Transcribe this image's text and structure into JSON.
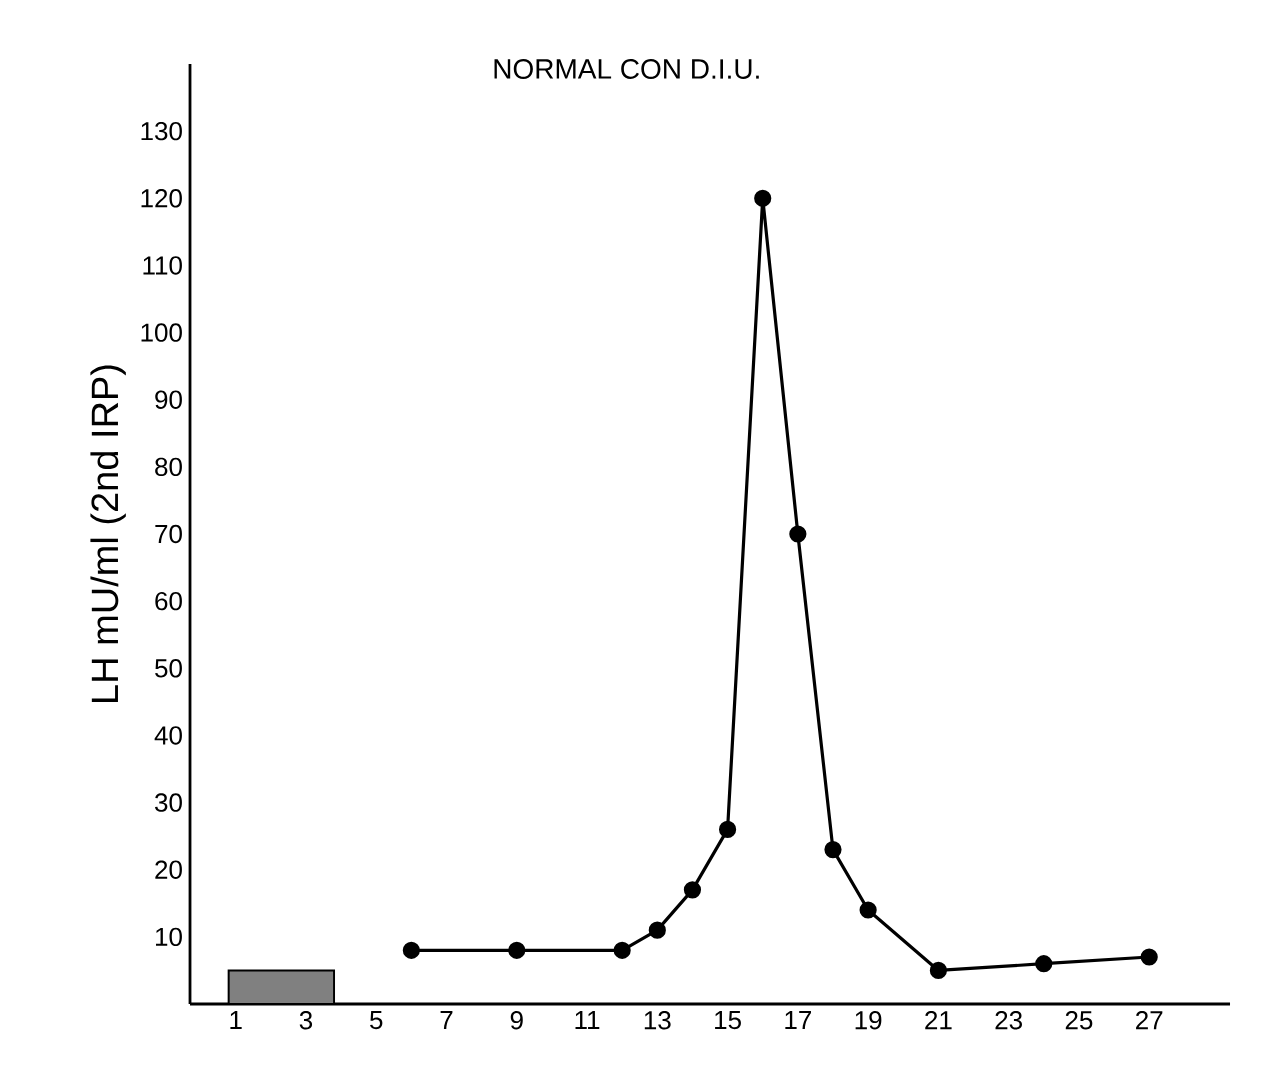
{
  "chart_data": {
    "type": "line",
    "title": "NORMAL CON D.I.U.",
    "ylabel": "LH mU/ml (2nd IRP)",
    "series": [
      {
        "type": "bar",
        "color": "#808080",
        "x": [
          2.3
        ],
        "values": [
          5
        ]
      },
      {
        "color": "#000000",
        "x": [
          6,
          9,
          12,
          13,
          14,
          15,
          16,
          17,
          18,
          19,
          21,
          24,
          27
        ],
        "values": [
          8,
          8,
          8,
          11,
          17,
          26,
          120,
          70,
          23,
          14,
          5,
          6,
          7
        ]
      }
    ],
    "xlim": [
      -0.3,
      29.3
    ],
    "ylim": [
      0,
      140
    ],
    "xticks": [
      1,
      3,
      5,
      7,
      9,
      11,
      13,
      15,
      17,
      19,
      21,
      23,
      25,
      27
    ],
    "yticks": [
      10,
      20,
      30,
      40,
      50,
      60,
      70,
      80,
      90,
      100,
      110,
      120,
      130
    ],
    "marker": "circle",
    "line_style": "solid",
    "grid": false
  }
}
